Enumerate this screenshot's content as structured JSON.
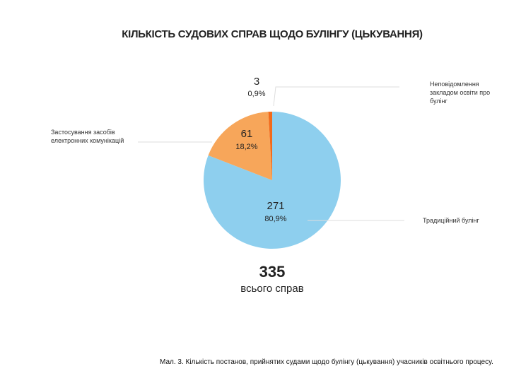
{
  "chart_data": {
    "type": "pie",
    "title": "КІЛЬКІСТЬ СУДОВИХ СПРАВ ЩОДО БУЛІНГУ (ЦЬКУВАННЯ)",
    "slices": [
      {
        "label": "Традиційний булінг",
        "value": 271,
        "percent": "80,9%",
        "color": "#8ecfee"
      },
      {
        "label": "Застосування засобів електронних комунікацій",
        "value": 61,
        "percent": "18,2%",
        "color": "#f7a65a"
      },
      {
        "label": "Неповідомлення закладом освіти про булінг",
        "value": 3,
        "percent": "0,9%",
        "color": "#f26a1b"
      }
    ],
    "start": "top",
    "direction": "clockwise",
    "total": {
      "value": "335",
      "label": "всього справ"
    }
  },
  "caption": "Мал. 3. Кількість постанов, прийнятих судами щодо булінгу (цькування) учасників освітнього процесу."
}
